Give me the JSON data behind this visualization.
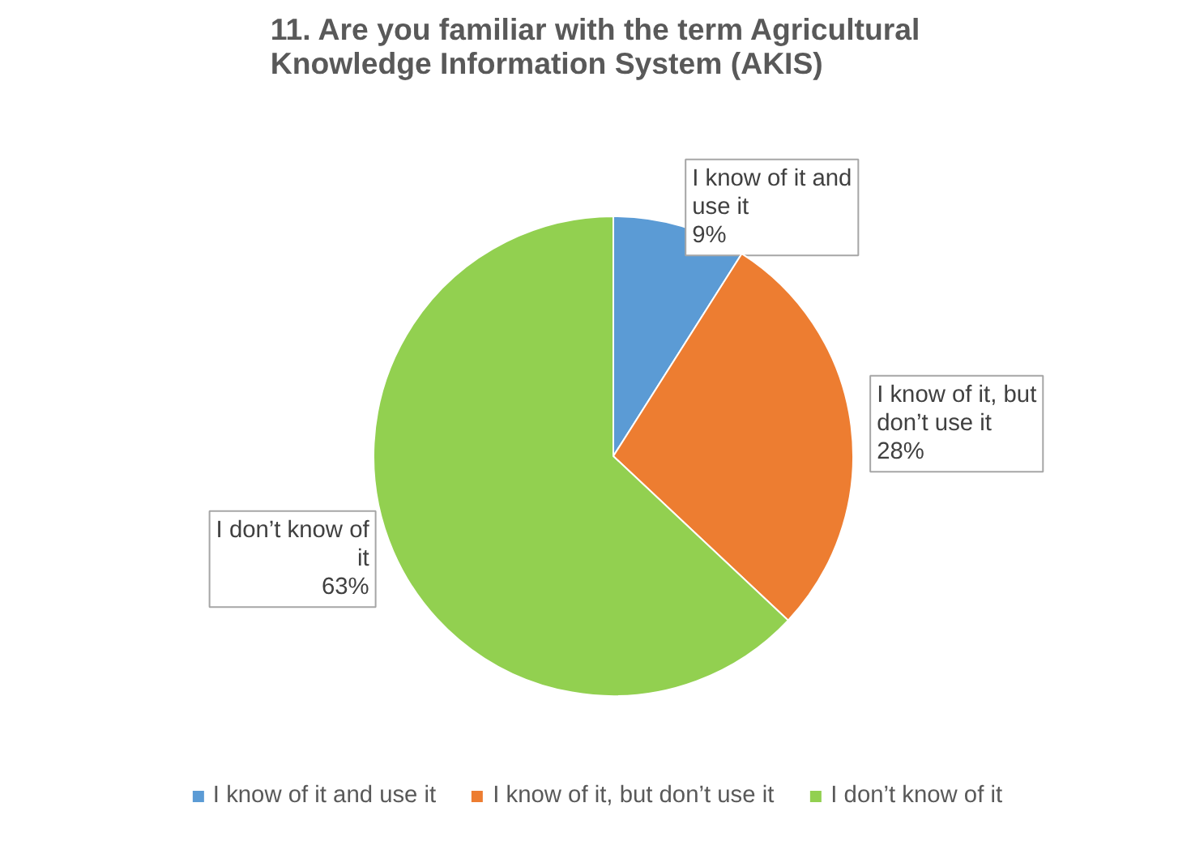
{
  "chart_data": {
    "type": "pie",
    "title": "11. Are you familiar with the term Agricultural Knowledge Information System (AKIS)",
    "categories": [
      "I know of it and use it",
      "I know of it, but don’t use it",
      "I don’t know of it"
    ],
    "values": [
      9,
      28,
      63
    ],
    "colors": [
      "#5b9bd5",
      "#ed7d31",
      "#92d050"
    ],
    "value_labels": [
      "9%",
      "28%",
      "63%"
    ],
    "legend": "bottom"
  }
}
